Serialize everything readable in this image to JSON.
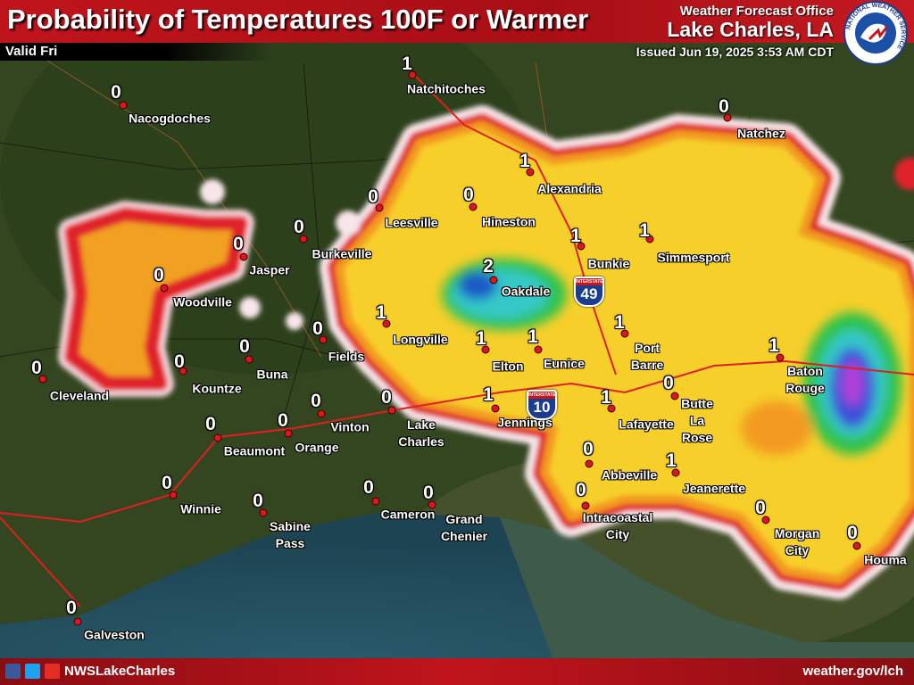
{
  "header": {
    "title": "Probability of Temperatures 100F or Warmer",
    "valid": "Valid Fri",
    "office_line": "Weather Forecast Office",
    "office": "Lake Charles, LA",
    "issued": "Issued Jun 19, 2025 3:53 AM CDT",
    "logo_text": "NATIONAL WEATHER SERVICE"
  },
  "cities": [
    {
      "name": "Natchitoches",
      "value": 1
    },
    {
      "name": "Nacogdoches",
      "value": 0
    },
    {
      "name": "Natchez",
      "value": 0
    },
    {
      "name": "Alexandria",
      "value": 1
    },
    {
      "name": "Leesville",
      "value": 0
    },
    {
      "name": "Hineston",
      "value": 0
    },
    {
      "name": "Burkeville",
      "value": 0
    },
    {
      "name": "Jasper",
      "value": 0
    },
    {
      "name": "Bunkie",
      "value": 1
    },
    {
      "name": "Simmesport",
      "value": 1
    },
    {
      "name": "Woodville",
      "value": 0
    },
    {
      "name": "Oakdale",
      "value": 2
    },
    {
      "name": "Longville",
      "value": 1
    },
    {
      "name": "Fields",
      "value": 0
    },
    {
      "name": "Cleveland",
      "value": 0
    },
    {
      "name": "Kountze",
      "value": 0
    },
    {
      "name": "Buna",
      "value": 0
    },
    {
      "name": "Elton",
      "value": 1
    },
    {
      "name": "Eunice",
      "value": 1
    },
    {
      "name": "Port Barre",
      "value": 1
    },
    {
      "name": "Baton Rouge",
      "value": 1
    },
    {
      "name": "Butte La Rose",
      "value": 0
    },
    {
      "name": "Lafayette",
      "value": 1
    },
    {
      "name": "Jennings",
      "value": 1
    },
    {
      "name": "Lake Charles",
      "value": 0
    },
    {
      "name": "Vinton",
      "value": 0
    },
    {
      "name": "Orange",
      "value": 0
    },
    {
      "name": "Beaumont",
      "value": 0
    },
    {
      "name": "Winnie",
      "value": 0
    },
    {
      "name": "Sabine Pass",
      "value": 0
    },
    {
      "name": "Cameron",
      "value": 0
    },
    {
      "name": "Grand Chenier",
      "value": 0
    },
    {
      "name": "Abbeville",
      "value": 0
    },
    {
      "name": "Jeanerette",
      "value": 1
    },
    {
      "name": "Intracoastal City",
      "value": 0
    },
    {
      "name": "Morgan City",
      "value": 0
    },
    {
      "name": "Houma",
      "value": 0
    },
    {
      "name": "Galveston",
      "value": 0
    }
  ],
  "shields": {
    "label": "INTERSTATE",
    "routes": [
      "49",
      "10"
    ]
  },
  "footer": {
    "social": "NWSLakeCharles",
    "website": "weather.gov/lch"
  }
}
